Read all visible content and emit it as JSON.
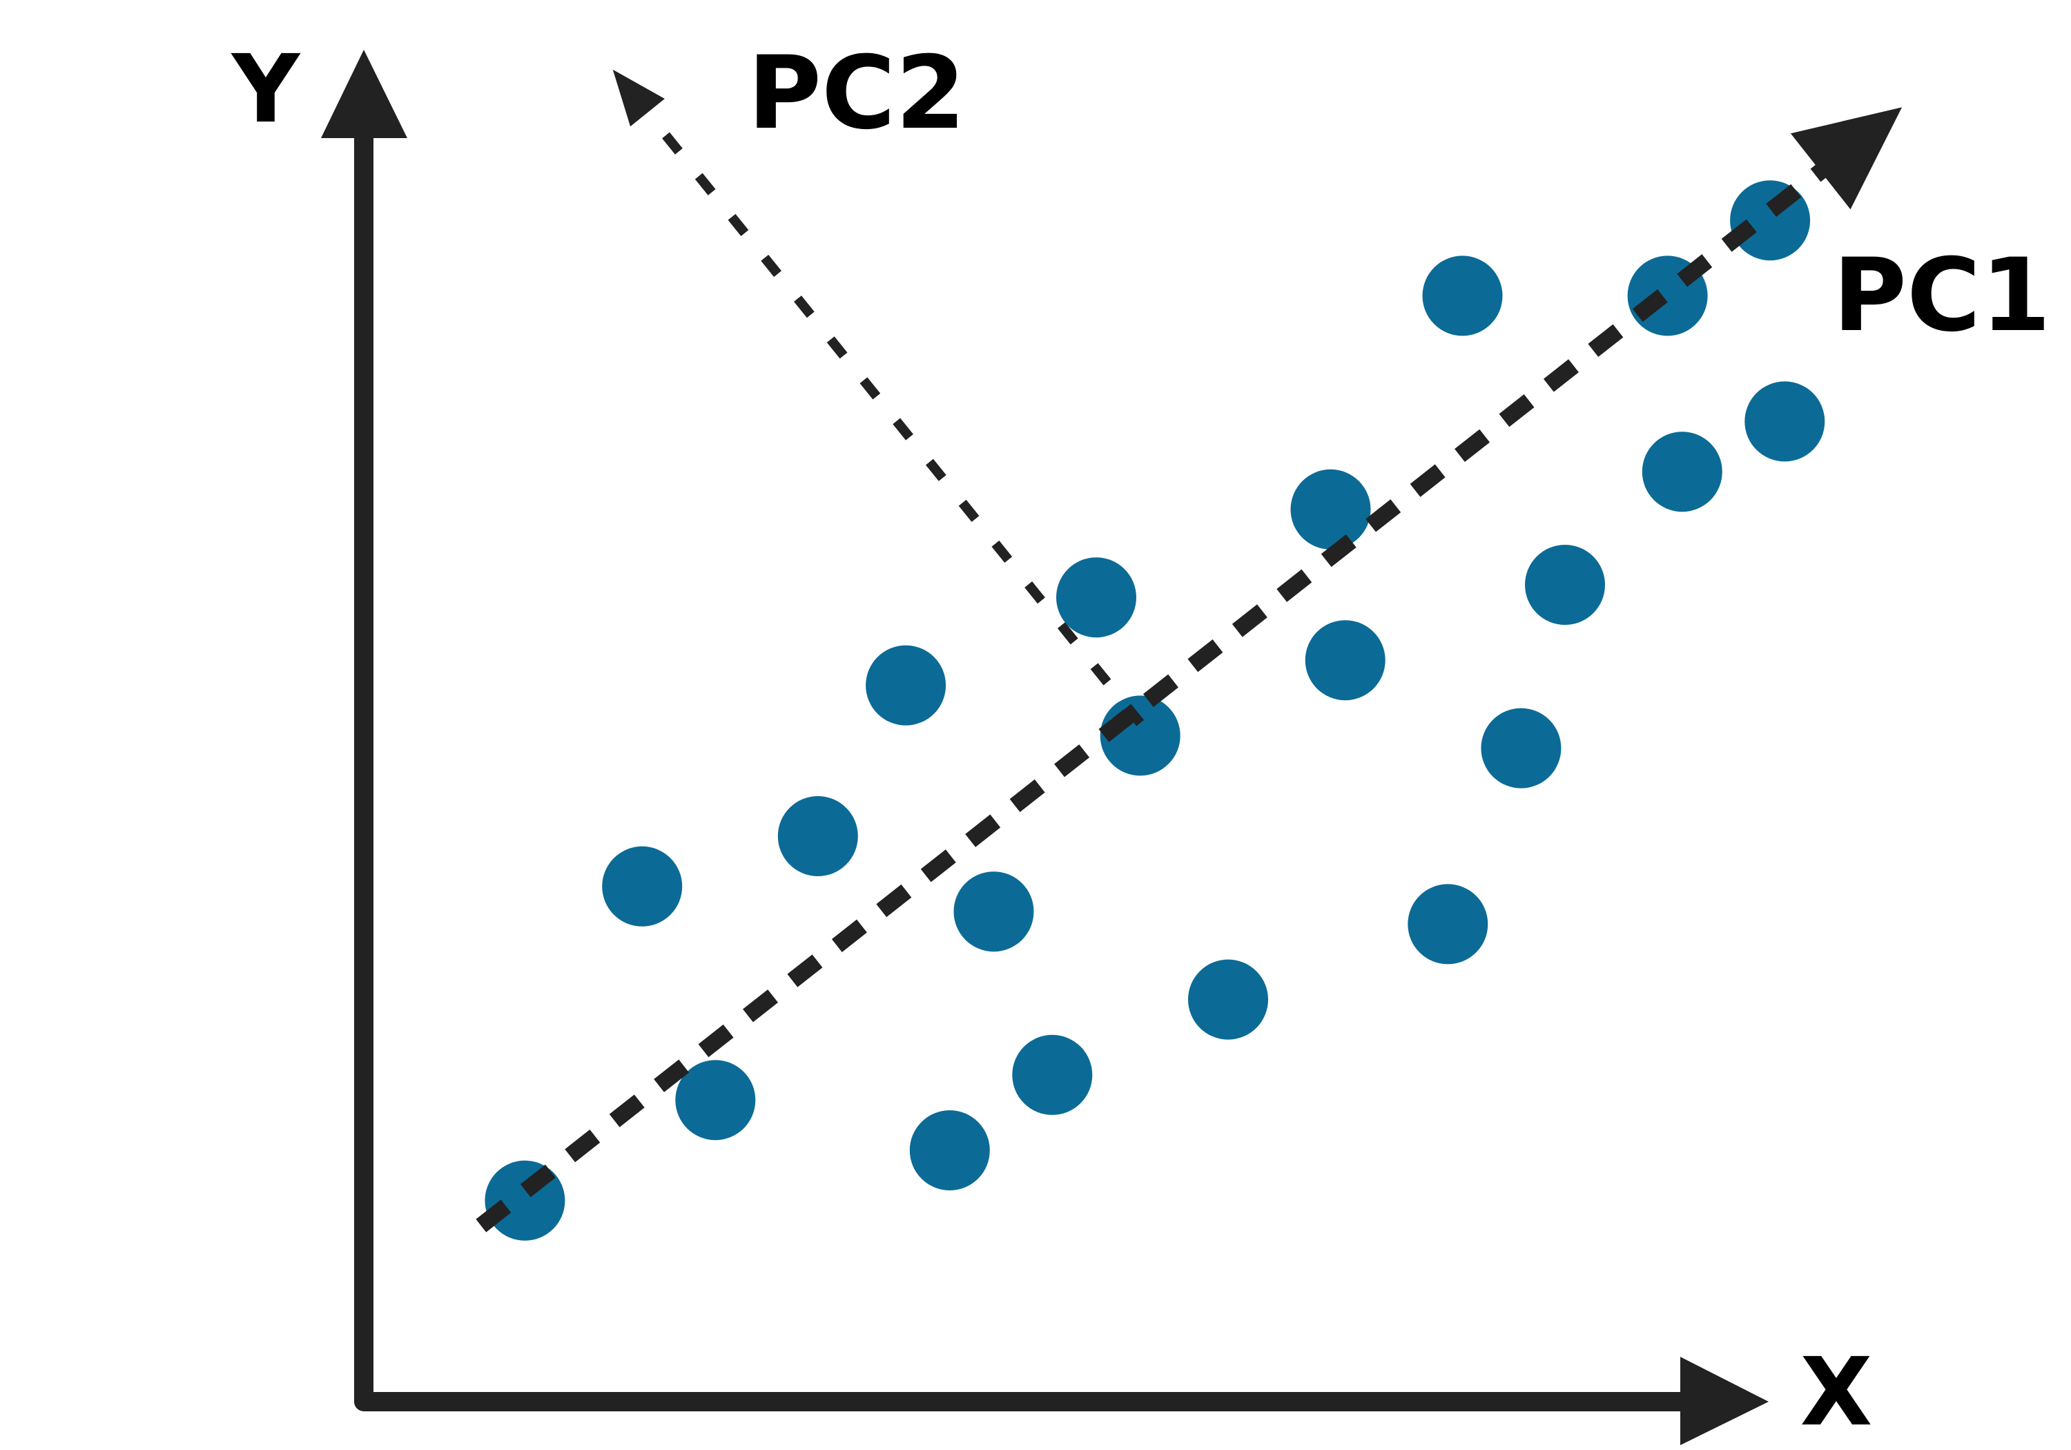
{
  "labels": {
    "y_axis": "Y",
    "x_axis": "X",
    "pc1": "PC1",
    "pc2": "PC2"
  },
  "colors": {
    "point": "#0b6b96",
    "ink": "#222222",
    "label": "#000000"
  },
  "chart_data": {
    "type": "scatter",
    "x": [
      0.11,
      0.19,
      0.24,
      0.31,
      0.37,
      0.4,
      0.43,
      0.47,
      0.5,
      0.53,
      0.59,
      0.66,
      0.67,
      0.74,
      0.75,
      0.79,
      0.82,
      0.89,
      0.9,
      0.96,
      0.97
    ],
    "y": [
      0.16,
      0.41,
      0.24,
      0.45,
      0.57,
      0.2,
      0.39,
      0.26,
      0.64,
      0.53,
      0.32,
      0.71,
      0.59,
      0.38,
      0.88,
      0.52,
      0.65,
      0.88,
      0.74,
      0.94,
      0.78
    ],
    "components": [
      {
        "name": "PC1",
        "from": [
          0.08,
          0.14
        ],
        "to": [
          1.05,
          1.03
        ]
      },
      {
        "name": "PC2",
        "from": [
          0.53,
          0.54
        ],
        "to": [
          0.17,
          1.06
        ]
      }
    ]
  }
}
